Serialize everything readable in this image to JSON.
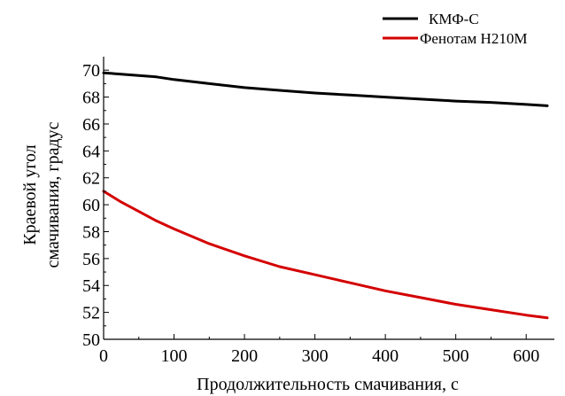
{
  "chart_data": {
    "type": "line",
    "title": "",
    "xlabel": "Продолжительность смачивания, с",
    "ylabel_lines": [
      "Краевой угол",
      "смачивания, градус"
    ],
    "xlim": [
      0,
      640
    ],
    "ylim": [
      50,
      71
    ],
    "x_ticks": [
      0,
      100,
      200,
      300,
      400,
      500,
      600
    ],
    "y_ticks": [
      50,
      52,
      54,
      56,
      58,
      60,
      62,
      64,
      66,
      68,
      70
    ],
    "grid": false,
    "legend_position": "top-right",
    "series": [
      {
        "name": "КМФ-С",
        "color": "#000000",
        "points": [
          [
            0,
            69.8
          ],
          [
            25,
            69.7
          ],
          [
            50,
            69.6
          ],
          [
            75,
            69.5
          ],
          [
            100,
            69.3
          ],
          [
            150,
            69.0
          ],
          [
            200,
            68.7
          ],
          [
            250,
            68.5
          ],
          [
            300,
            68.3
          ],
          [
            350,
            68.15
          ],
          [
            400,
            68.0
          ],
          [
            450,
            67.85
          ],
          [
            500,
            67.7
          ],
          [
            550,
            67.6
          ],
          [
            600,
            67.45
          ],
          [
            630,
            67.35
          ]
        ]
      },
      {
        "name": "Фенотам Н210М",
        "color": "#d40000",
        "points": [
          [
            0,
            61.0
          ],
          [
            25,
            60.2
          ],
          [
            50,
            59.5
          ],
          [
            75,
            58.8
          ],
          [
            100,
            58.2
          ],
          [
            150,
            57.1
          ],
          [
            200,
            56.2
          ],
          [
            250,
            55.4
          ],
          [
            300,
            54.8
          ],
          [
            350,
            54.2
          ],
          [
            400,
            53.6
          ],
          [
            450,
            53.1
          ],
          [
            500,
            52.6
          ],
          [
            550,
            52.2
          ],
          [
            600,
            51.8
          ],
          [
            630,
            51.6
          ]
        ]
      }
    ]
  }
}
